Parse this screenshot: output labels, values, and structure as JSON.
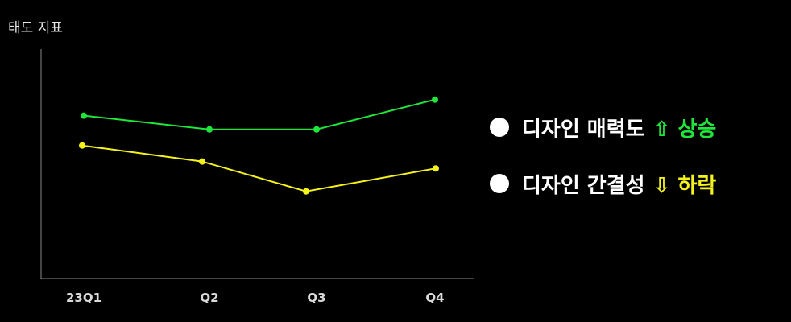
{
  "chart_data": {
    "type": "line",
    "ylabel": "태도 지표",
    "xlabel": "",
    "categories": [
      "23Q1",
      "Q2",
      "Q3",
      "Q4"
    ],
    "ylim": [
      0,
      100
    ],
    "grid": false,
    "legend_position": "right",
    "series": [
      {
        "name": "디자인 매력도",
        "color": "#1ee63a",
        "values": [
          71,
          65,
          65,
          78
        ]
      },
      {
        "name": "디자인 간결성",
        "color": "#f5f31c",
        "values": [
          58,
          51,
          38,
          48
        ]
      }
    ]
  },
  "legend": [
    {
      "label": "디자인 매력도",
      "arrow": "⇧",
      "trend": "상승",
      "color": "#1ee63a"
    },
    {
      "label": "디자인 간결성",
      "arrow": "⇩",
      "trend": "하락",
      "color": "#f5f31c"
    }
  ],
  "colors": {
    "background": "#000000",
    "axis": "#8a8a8a",
    "tick_text": "#d9d9d9"
  }
}
